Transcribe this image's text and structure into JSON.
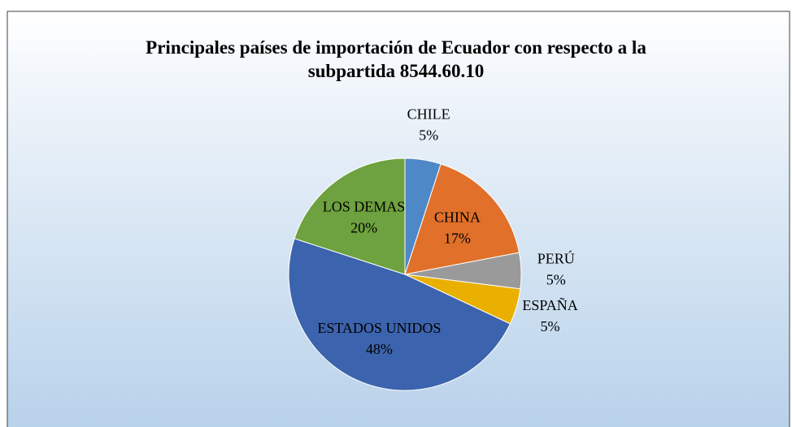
{
  "chart_data": {
    "type": "pie",
    "title": "Principales países de importación de Ecuador con respecto a la subpartida 8544.60.10",
    "categories": [
      "CHILE",
      "CHINA",
      "PERÚ",
      "ESPAÑA",
      "ESTADOS UNIDOS",
      "LOS DEMAS"
    ],
    "values": [
      5,
      17,
      5,
      5,
      48,
      20
    ],
    "value_labels": [
      "5%",
      "17%",
      "5%",
      "5%",
      "48%",
      "20%"
    ],
    "colors": [
      "#4f88c6",
      "#e0702a",
      "#9a9a9a",
      "#e9b000",
      "#3c63ad",
      "#6ea13f"
    ]
  }
}
